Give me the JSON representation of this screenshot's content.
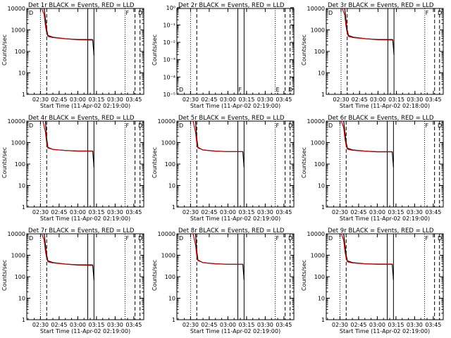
{
  "time_labels": [
    "02:30",
    "02:45",
    "03:00",
    "03:15",
    "03:30",
    "03:45"
  ],
  "y_labels": [
    "10000",
    "1000",
    "100",
    "10",
    "1"
  ],
  "y_labels_sci": [
    "10⁻⁵",
    "10⁻⁴",
    "10⁻³",
    "10⁻²",
    "10⁻¹",
    "10⁰"
  ],
  "chart_data": [
    {
      "type": "line",
      "title": "Det 1r BLACK = Events, RED = LLD",
      "ylabel": "Counts/sec",
      "xlabel": "Start Time (11-Apr-02 02:19:00)",
      "yscale": "log",
      "ylim": [
        1,
        10000
      ],
      "xlim": [
        "02:19",
        "03:53"
      ],
      "markers": [
        "D",
        "F",
        "D"
      ],
      "series": [
        {
          "name": "Events",
          "color": "#000000",
          "x": [
            "02:33",
            "02:34",
            "02:35",
            "02:36",
            "02:40",
            "02:50",
            "03:00",
            "03:12",
            "03:13"
          ],
          "y": [
            10000,
            3000,
            1000,
            550,
            460,
            390,
            350,
            340,
            65
          ]
        },
        {
          "name": "LLD",
          "color": "#cc0000",
          "x": [
            "02:31",
            "02:33",
            "02:34",
            "02:35",
            "02:36",
            "02:40",
            "02:50",
            "03:00",
            "03:12"
          ],
          "y": [
            10000,
            5000,
            1500,
            700,
            500,
            440,
            390,
            360,
            360
          ]
        }
      ]
    },
    {
      "type": "line",
      "title": "Det 2r BLACK = Events, RED = LLD",
      "ylabel": "Counts/sec",
      "xlabel": "Start Time (11-Apr-02 02:19:00)",
      "yscale": "log",
      "ylim": [
        0.9,
        1e-05
      ],
      "xlim": [
        "02:19",
        "03:53"
      ],
      "markers": [
        "D",
        "F",
        "E",
        "D"
      ],
      "series": []
    },
    {
      "type": "line",
      "title": "Det 3r BLACK = Events, RED = LLD",
      "ylabel": "Counts/sec",
      "xlabel": "Start Time (11-Apr-02 02:18:00)",
      "yscale": "log",
      "ylim": [
        1,
        10000
      ],
      "xlim": [
        "02:18",
        "03:53"
      ],
      "markers": [
        "D",
        "F",
        "D"
      ],
      "series": [
        {
          "name": "Events",
          "color": "#000000",
          "x": [
            "02:33",
            "02:34",
            "02:35",
            "02:36",
            "02:40",
            "02:50",
            "03:00",
            "03:12",
            "03:13"
          ],
          "y": [
            10000,
            3000,
            1000,
            550,
            460,
            390,
            350,
            340,
            70
          ]
        },
        {
          "name": "LLD",
          "color": "#cc0000",
          "x": [
            "02:31",
            "02:33",
            "02:34",
            "02:35",
            "02:36",
            "02:40",
            "02:50",
            "03:00",
            "03:12"
          ],
          "y": [
            10000,
            5000,
            1500,
            700,
            500,
            440,
            390,
            360,
            360
          ]
        }
      ]
    },
    {
      "type": "line",
      "title": "Det 4r BLACK = Events, RED = LLD",
      "ylabel": "Counts/sec",
      "xlabel": "Start Time (11-Apr-02 02:19:00)",
      "yscale": "log",
      "ylim": [
        1,
        10000
      ],
      "xlim": [
        "02:19",
        "03:53"
      ],
      "markers": [
        "D",
        "F",
        "D"
      ],
      "series": [
        {
          "name": "Events",
          "color": "#000000",
          "x": [
            "02:34",
            "02:35",
            "02:36",
            "02:40",
            "02:50",
            "03:00",
            "03:12",
            "03:13"
          ],
          "y": [
            10000,
            1500,
            600,
            480,
            430,
            400,
            400,
            70
          ]
        },
        {
          "name": "LLD",
          "color": "#cc0000",
          "x": [
            "02:32",
            "02:34",
            "02:35",
            "02:36",
            "02:40",
            "02:50",
            "03:00",
            "03:12"
          ],
          "y": [
            10000,
            3000,
            900,
            560,
            480,
            430,
            410,
            410
          ]
        }
      ]
    },
    {
      "type": "line",
      "title": "Det 5r BLACK = Events, RED = LLD",
      "ylabel": "Counts/sec",
      "xlabel": "Start Time (11-Apr-02 02:19:00)",
      "yscale": "log",
      "ylim": [
        1,
        10000
      ],
      "xlim": [
        "02:19",
        "03:53"
      ],
      "markers": [
        "D",
        "F",
        "D"
      ],
      "series": [
        {
          "name": "Events",
          "color": "#000000",
          "x": [
            "02:34",
            "02:35",
            "02:36",
            "02:40",
            "02:50",
            "03:00",
            "03:12",
            "03:13"
          ],
          "y": [
            10000,
            1500,
            600,
            450,
            400,
            380,
            380,
            70
          ]
        },
        {
          "name": "LLD",
          "color": "#cc0000",
          "x": [
            "02:32",
            "02:34",
            "02:35",
            "02:36",
            "02:40",
            "02:50",
            "03:00",
            "03:12"
          ],
          "y": [
            10000,
            3000,
            900,
            560,
            460,
            400,
            380,
            380
          ]
        }
      ]
    },
    {
      "type": "line",
      "title": "Det 6r BLACK = Events, RED = LLD",
      "ylabel": "Counts/sec",
      "xlabel": "Start Time (11-Apr-02 02:19:00)",
      "yscale": "log",
      "ylim": [
        1,
        10000
      ],
      "xlim": [
        "02:19",
        "03:53"
      ],
      "markers": [
        "D",
        "F",
        "D"
      ],
      "series": [
        {
          "name": "Events",
          "color": "#000000",
          "x": [
            "02:33",
            "02:34",
            "02:35",
            "02:36",
            "02:40",
            "02:50",
            "03:00",
            "03:12",
            "03:13"
          ],
          "y": [
            10000,
            3000,
            1000,
            550,
            460,
            400,
            370,
            370,
            70
          ]
        },
        {
          "name": "LLD",
          "color": "#cc0000",
          "x": [
            "02:31",
            "02:33",
            "02:34",
            "02:35",
            "02:36",
            "02:40",
            "02:50",
            "03:00",
            "03:12"
          ],
          "y": [
            10000,
            5000,
            1500,
            700,
            500,
            440,
            400,
            380,
            380
          ]
        }
      ]
    },
    {
      "type": "line",
      "title": "Det 7r BLACK = Events, RED = LLD",
      "ylabel": "Counts/sec",
      "xlabel": "Start Time (11-Apr-02 02:19:00)",
      "yscale": "log",
      "ylim": [
        1,
        10000
      ],
      "xlim": [
        "02:19",
        "03:53"
      ],
      "markers": [
        "D",
        "F",
        "D"
      ],
      "series": [
        {
          "name": "Events",
          "color": "#000000",
          "x": [
            "02:33",
            "02:34",
            "02:35",
            "02:36",
            "02:40",
            "02:50",
            "03:00",
            "03:12",
            "03:13"
          ],
          "y": [
            10000,
            3000,
            1000,
            550,
            460,
            390,
            350,
            340,
            70
          ]
        },
        {
          "name": "LLD",
          "color": "#cc0000",
          "x": [
            "02:31",
            "02:33",
            "02:34",
            "02:35",
            "02:36",
            "02:40",
            "02:50",
            "03:00",
            "03:12"
          ],
          "y": [
            10000,
            5000,
            1500,
            700,
            500,
            440,
            390,
            360,
            360
          ]
        }
      ]
    },
    {
      "type": "line",
      "title": "Det 8r BLACK = Events, RED = LLD",
      "ylabel": "Counts/sec",
      "xlabel": "Start Time (11-Apr-02 02:19:00)",
      "yscale": "log",
      "ylim": [
        1,
        10000
      ],
      "xlim": [
        "02:19",
        "03:53"
      ],
      "markers": [
        "D",
        "F",
        "D"
      ],
      "series": [
        {
          "name": "Events",
          "color": "#000000",
          "x": [
            "02:34",
            "02:35",
            "02:36",
            "02:40",
            "02:50",
            "03:00",
            "03:12",
            "03:13"
          ],
          "y": [
            10000,
            1500,
            600,
            450,
            400,
            380,
            380,
            70
          ]
        },
        {
          "name": "LLD",
          "color": "#cc0000",
          "x": [
            "02:32",
            "02:34",
            "02:35",
            "02:36",
            "02:40",
            "02:50",
            "03:00",
            "03:12"
          ],
          "y": [
            10000,
            3000,
            900,
            560,
            460,
            400,
            380,
            380
          ]
        }
      ]
    },
    {
      "type": "line",
      "title": "Det 9r BLACK = Events, RED = LLD",
      "ylabel": "Counts/sec",
      "xlabel": "Start Time (11-Apr-02 02:19:00)",
      "yscale": "log",
      "ylim": [
        1,
        10000
      ],
      "xlim": [
        "02:19",
        "03:53"
      ],
      "markers": [
        "D",
        "F",
        "D"
      ],
      "series": [
        {
          "name": "Events",
          "color": "#000000",
          "x": [
            "02:33",
            "02:34",
            "02:35",
            "02:36",
            "02:40",
            "02:50",
            "03:00",
            "03:12",
            "03:13"
          ],
          "y": [
            10000,
            3000,
            1000,
            550,
            460,
            400,
            380,
            380,
            70
          ]
        },
        {
          "name": "LLD",
          "color": "#cc0000",
          "x": [
            "02:31",
            "02:33",
            "02:34",
            "02:35",
            "02:36",
            "02:40",
            "02:50",
            "03:00",
            "03:12"
          ],
          "y": [
            10000,
            5000,
            1500,
            700,
            500,
            440,
            400,
            390,
            390
          ]
        }
      ]
    }
  ]
}
